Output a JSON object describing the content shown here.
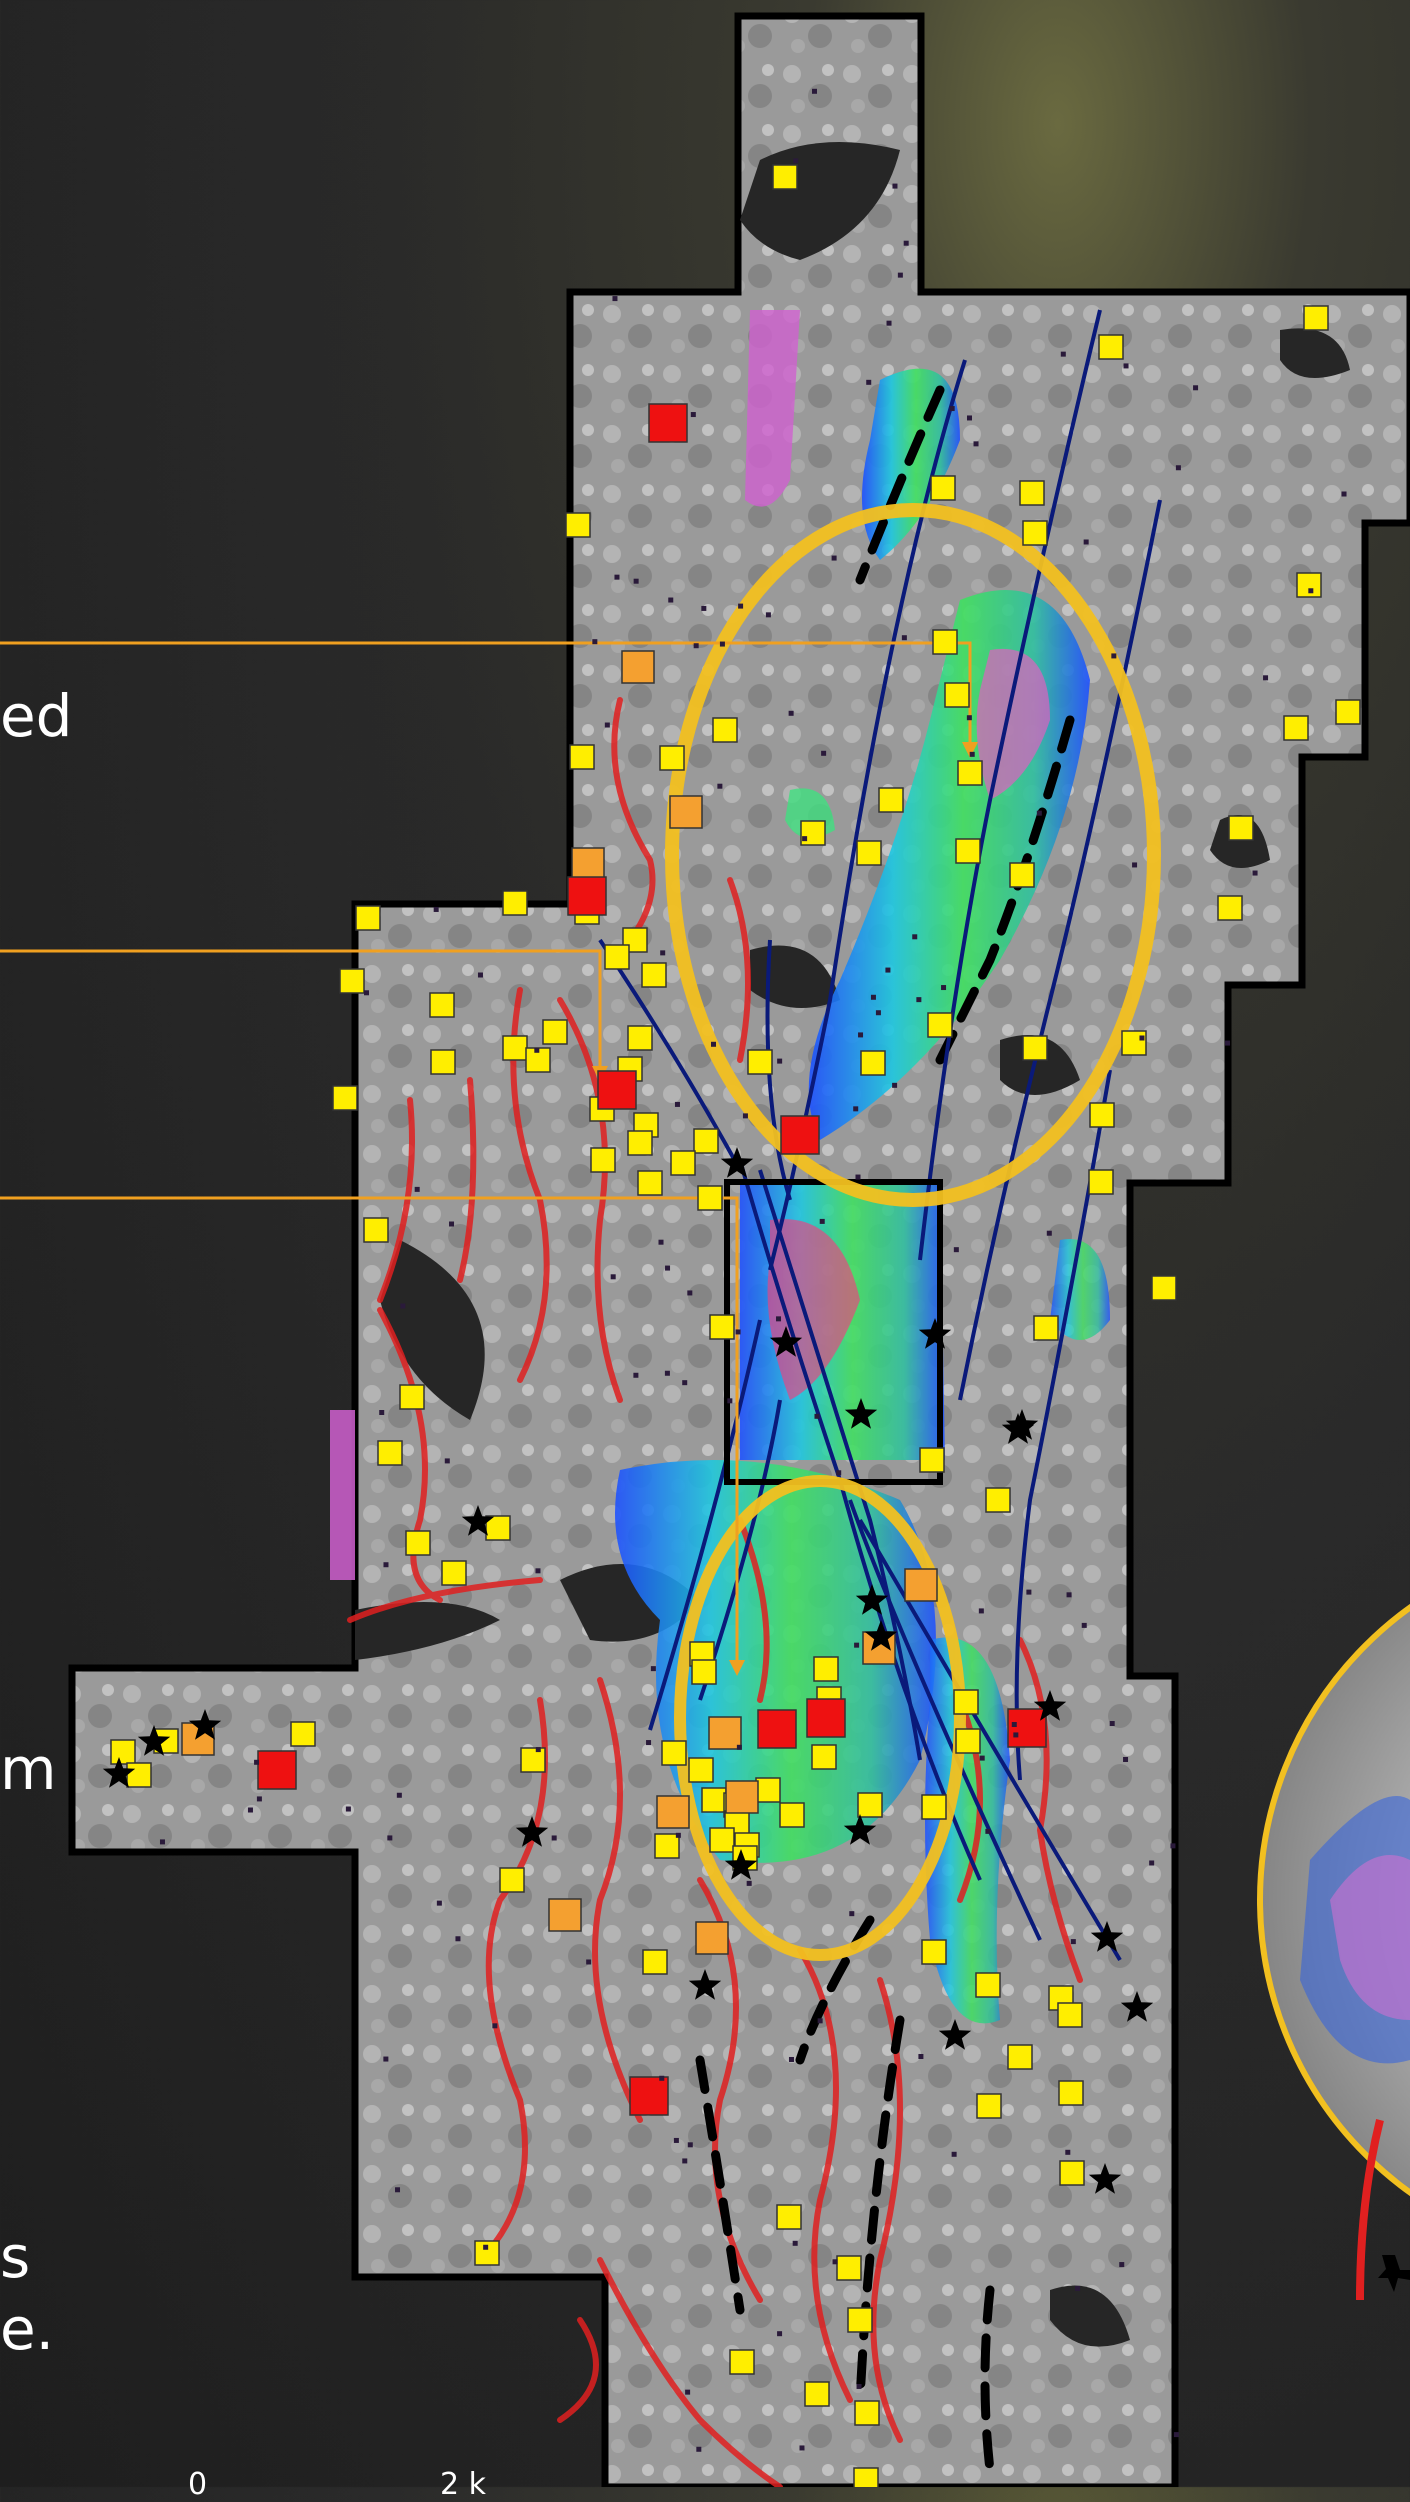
{
  "side_text": {
    "fragment_1": "ed",
    "fragment_2": "m",
    "fragment_3": "s",
    "fragment_4": "e.",
    "scale_0": "0",
    "scale_1": "2 k"
  },
  "colors": {
    "background": "#262626",
    "ellipse": "#f2c020",
    "leader_line": "#f0a020",
    "fault_line": "#0a1a7a",
    "red_trace": "#e02020",
    "yellow_marker": "#ffee00",
    "orange_marker": "#f4a030",
    "red_marker": "#ee1111",
    "star_marker": "#000000"
  },
  "legend_icons": [
    "yellow-square-icon",
    "orange-square-icon",
    "red-square-icon",
    "star-icon"
  ]
}
